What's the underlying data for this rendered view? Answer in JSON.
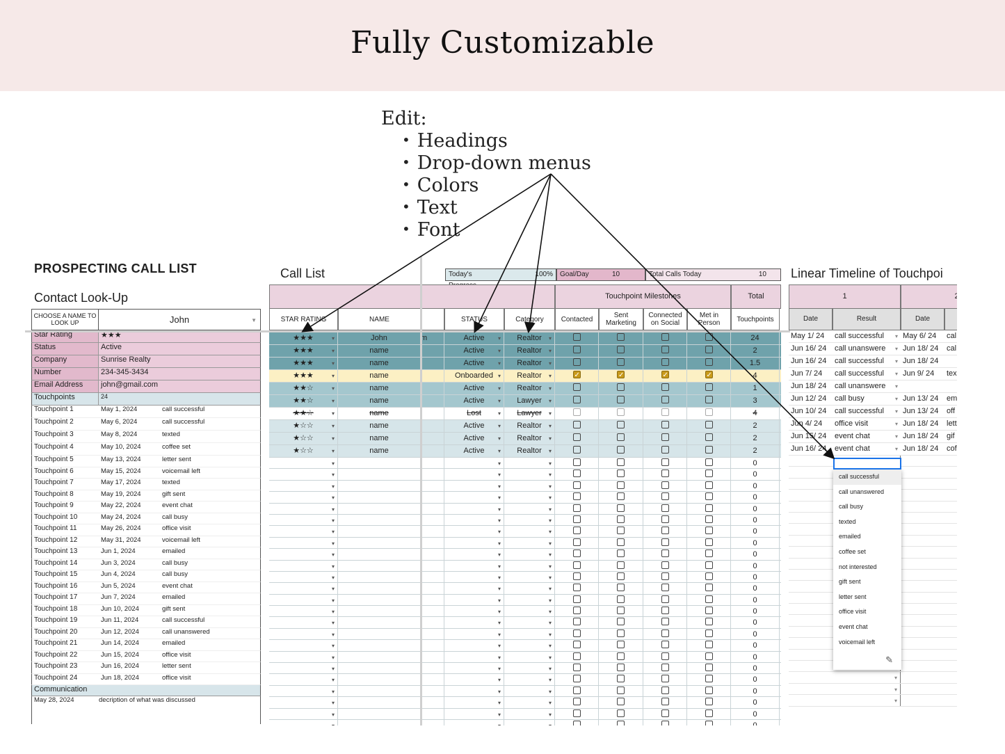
{
  "banner": {
    "title": "Fully Customizable"
  },
  "callout": {
    "edit": "Edit:",
    "items": [
      "Headings",
      "Drop-down menus",
      "Colors",
      "Text",
      "Font"
    ]
  },
  "left": {
    "title": "PROSPECTING CALL LIST",
    "lookup_title": "Contact Look-Up",
    "choose_label": "CHOOSE A NAME TO LOOK UP",
    "choose_value": "John",
    "fields": [
      {
        "label": "Star Rating",
        "value": "★★★"
      },
      {
        "label": "Status",
        "value": "Active"
      },
      {
        "label": "Company",
        "value": "Sunrise Realty"
      },
      {
        "label": "Number",
        "value": "234-345-3434"
      },
      {
        "label": "Email Address",
        "value": "john@gmail.com"
      }
    ],
    "touchpoints_label": "Touchpoints",
    "touchpoints_value": "24",
    "touchpoints": [
      {
        "label": "Touchpoint 1",
        "date": "May 1, 2024",
        "result": "call successful"
      },
      {
        "label": "Touchpoint 2",
        "date": "May 6, 2024",
        "result": "call successful"
      },
      {
        "label": "Touchpoint 3",
        "date": "May 8, 2024",
        "result": "texted"
      },
      {
        "label": "Touchpoint 4",
        "date": "May 10, 2024",
        "result": "coffee set"
      },
      {
        "label": "Touchpoint 5",
        "date": "May 13, 2024",
        "result": "letter sent"
      },
      {
        "label": "Touchpoint 6",
        "date": "May 15, 2024",
        "result": "voicemail left"
      },
      {
        "label": "Touchpoint 7",
        "date": "May 17, 2024",
        "result": "texted"
      },
      {
        "label": "Touchpoint 8",
        "date": "May 19, 2024",
        "result": "gift sent"
      },
      {
        "label": "Touchpoint 9",
        "date": "May 22, 2024",
        "result": "event chat"
      },
      {
        "label": "Touchpoint 10",
        "date": "May 24, 2024",
        "result": "call busy"
      },
      {
        "label": "Touchpoint 11",
        "date": "May 26, 2024",
        "result": "office visit"
      },
      {
        "label": "Touchpoint 12",
        "date": "May 31, 2024",
        "result": "voicemail left"
      },
      {
        "label": "Touchpoint 13",
        "date": "Jun 1, 2024",
        "result": "emailed"
      },
      {
        "label": "Touchpoint 14",
        "date": "Jun 3, 2024",
        "result": "call busy"
      },
      {
        "label": "Touchpoint 15",
        "date": "Jun 4, 2024",
        "result": "call busy"
      },
      {
        "label": "Touchpoint 16",
        "date": "Jun 5, 2024",
        "result": "event chat"
      },
      {
        "label": "Touchpoint 17",
        "date": "Jun 7, 2024",
        "result": "emailed"
      },
      {
        "label": "Touchpoint 18",
        "date": "Jun 10, 2024",
        "result": "gift sent"
      },
      {
        "label": "Touchpoint 19",
        "date": "Jun 11, 2024",
        "result": "call successful"
      },
      {
        "label": "Touchpoint 20",
        "date": "Jun 12, 2024",
        "result": "call unanswered"
      },
      {
        "label": "Touchpoint 21",
        "date": "Jun 14, 2024",
        "result": "emailed"
      },
      {
        "label": "Touchpoint 22",
        "date": "Jun 15, 2024",
        "result": "office visit"
      },
      {
        "label": "Touchpoint 23",
        "date": "Jun 16, 2024",
        "result": "letter sent"
      },
      {
        "label": "Touchpoint 24",
        "date": "Jun 18, 2024",
        "result": "office visit"
      }
    ],
    "communication_label": "Communication",
    "communication": {
      "date": "May 28, 2024",
      "text": "decription of what was discussed"
    }
  },
  "call_list": {
    "title": "Call List",
    "progress": {
      "label": "Today's Progress",
      "value": "100%"
    },
    "goal": {
      "label": "Goal/Day",
      "value": "10"
    },
    "total_calls": {
      "label": "Total Calls Today",
      "value": "10"
    },
    "group_headers": {
      "milestones": "Touchpoint Milestones",
      "total": "Total"
    },
    "columns": [
      "STAR RATING",
      "NAME",
      "",
      "STATUS",
      "Category",
      "Contacted",
      "Sent Marketing",
      "Connected on Social",
      "Met in Person",
      "Touchpoints"
    ],
    "rows": [
      {
        "stars": "★★★",
        "name": "John",
        "extra": "m",
        "status": "Active",
        "category": "Realtor",
        "checks": [
          0,
          0,
          0,
          0
        ],
        "total": "24",
        "tone": "dark"
      },
      {
        "stars": "★★★",
        "name": "name",
        "extra": "",
        "status": "Active",
        "category": "Realtor",
        "checks": [
          0,
          0,
          0,
          0
        ],
        "total": "2",
        "tone": "dark"
      },
      {
        "stars": "★★★",
        "name": "name",
        "extra": "",
        "status": "Active",
        "category": "Realtor",
        "checks": [
          0,
          0,
          0,
          0
        ],
        "total": "1.5",
        "tone": "dark"
      },
      {
        "stars": "★★★",
        "name": "name",
        "extra": "",
        "status": "Onboarded",
        "category": "Realtor",
        "checks": [
          1,
          1,
          1,
          1
        ],
        "total": "4",
        "tone": "gold"
      },
      {
        "stars": "★★☆",
        "name": "name",
        "extra": "",
        "status": "Active",
        "category": "Realtor",
        "checks": [
          0,
          0,
          0,
          0
        ],
        "total": "1",
        "tone": "mid"
      },
      {
        "stars": "★★☆",
        "name": "name",
        "extra": "",
        "status": "Active",
        "category": "Lawyer",
        "checks": [
          0,
          0,
          0,
          0
        ],
        "total": "3",
        "tone": "mid"
      },
      {
        "stars": "★★☆",
        "name": "name",
        "extra": "",
        "status": "Lost",
        "category": "Lawyer",
        "checks": [
          0,
          0,
          0,
          0
        ],
        "total": "4",
        "tone": "lost"
      },
      {
        "stars": "★☆☆",
        "name": "name",
        "extra": "",
        "status": "Active",
        "category": "Realtor",
        "checks": [
          0,
          0,
          0,
          0
        ],
        "total": "2",
        "tone": "light"
      },
      {
        "stars": "★☆☆",
        "name": "name",
        "extra": "",
        "status": "Active",
        "category": "Realtor",
        "checks": [
          0,
          0,
          0,
          0
        ],
        "total": "2",
        "tone": "light"
      },
      {
        "stars": "★☆☆",
        "name": "name",
        "extra": "",
        "status": "Active",
        "category": "Realtor",
        "checks": [
          0,
          0,
          0,
          0
        ],
        "total": "2",
        "tone": "light"
      }
    ],
    "empty_total": "0"
  },
  "timeline": {
    "title": "Linear Timeline of Touchpoi",
    "groups": [
      "1",
      "2"
    ],
    "col_date": "Date",
    "col_result": "Result",
    "rows": [
      [
        "May 1/ 24",
        "call successful",
        "May 6/ 24",
        "cal"
      ],
      [
        "Jun 16/ 24",
        "call unanswere",
        "Jun 18/ 24",
        "cal"
      ],
      [
        "Jun 16/ 24",
        "call successful",
        "Jun 18/ 24",
        ""
      ],
      [
        "Jun 7/ 24",
        "call successful",
        "Jun 9/ 24",
        "tex"
      ],
      [
        "Jun 18/ 24",
        "call unanswere",
        "",
        ""
      ],
      [
        "Jun 12/ 24",
        "call busy",
        "Jun 13/ 24",
        "em"
      ],
      [
        "Jun 10/ 24",
        "call successful",
        "Jun 13/ 24",
        "off"
      ],
      [
        "Jun 4/ 24",
        "office visit",
        "Jun 18/ 24",
        "lett"
      ],
      [
        "Jun 15/ 24",
        "event chat",
        "Jun 18/ 24",
        "gif"
      ],
      [
        "Jun 16/ 24",
        "event chat",
        "Jun 18/ 24",
        "cof"
      ]
    ],
    "dropdown_options": [
      "call successful",
      "call unanswered",
      "call busy",
      "texted",
      "emailed",
      "coffee set",
      "not interested",
      "gift sent",
      "letter sent",
      "office visit",
      "event chat",
      "voicemail left"
    ]
  },
  "colors": {
    "pink_header": "#ebd3df",
    "teal_dark": "#6fa2ab",
    "teal_mid": "#a4c7ce",
    "teal_light": "#d6e5e9",
    "gold_row": "#fcf0c4",
    "checkbox_on": "#c99a1b"
  },
  "icons": {
    "dropdown": "chevron-down-icon",
    "edit": "pencil-icon",
    "checkbox": "checkbox-icon"
  }
}
